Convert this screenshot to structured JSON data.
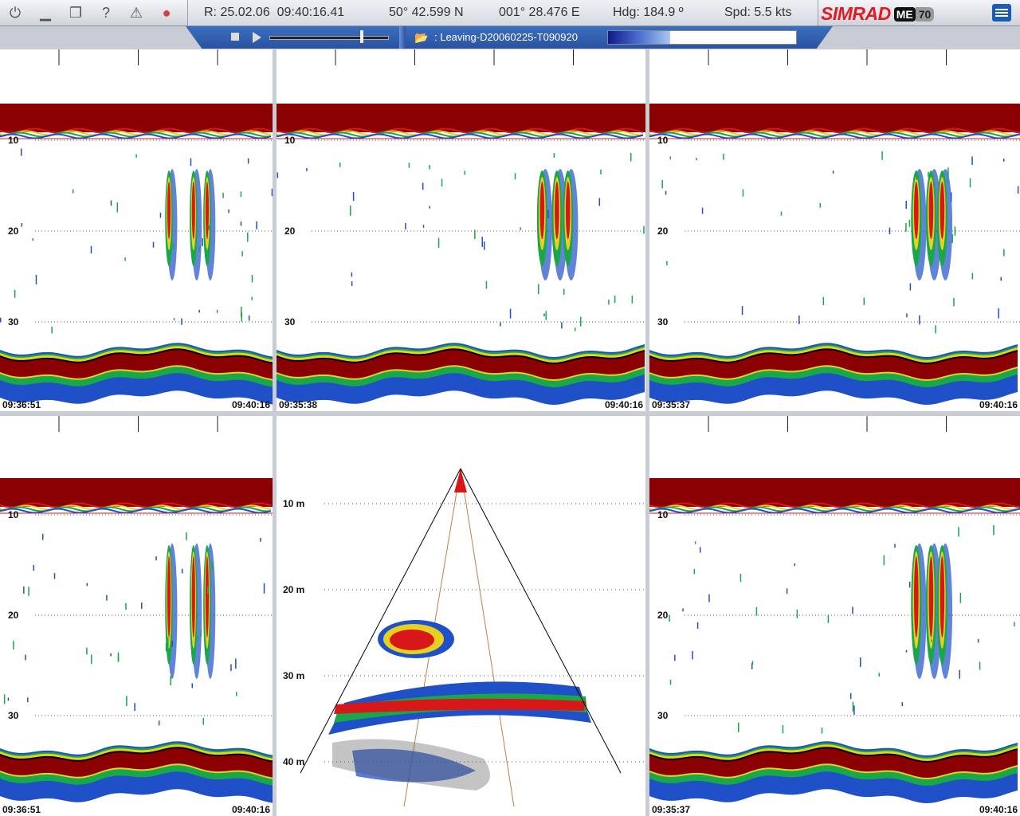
{
  "toolbar": {
    "icons": [
      "power-icon",
      "minimize-icon",
      "restore-icon",
      "help-icon",
      "warning-icon",
      "record-icon"
    ]
  },
  "status": {
    "date_time": "R: 25.02.06  09:40:16.41",
    "latitude": "50° 42.599 N",
    "longitude": "001° 28.476 E",
    "heading": "Hdg: 184.9 º",
    "speed": "Spd: 5.5 kts"
  },
  "brand": {
    "logo_text": "SIMRAD",
    "model_me": "ME",
    "model_num": "70"
  },
  "replay": {
    "file_label": ": Leaving-D20060225-T090920",
    "slider_position": 0.77,
    "progress_fraction": 0.33
  },
  "echograms": [
    {
      "id": "top-left",
      "depth_labels": [
        "10",
        "20",
        "30"
      ],
      "time_start": "09:36:51",
      "time_end": "09:40:16"
    },
    {
      "id": "top-middle",
      "depth_labels": [
        "10",
        "20",
        "30"
      ],
      "time_start": "09:35:38",
      "time_end": "09:40:16"
    },
    {
      "id": "top-right",
      "depth_labels": [
        "10",
        "20",
        "30"
      ],
      "time_start": "09:35:37",
      "time_end": "09:40:16"
    },
    {
      "id": "bottom-left",
      "depth_labels": [
        "10",
        "20",
        "30"
      ],
      "time_start": "09:36:51",
      "time_end": "09:40:16"
    },
    {
      "id": "bottom-right",
      "depth_labels": [
        "10",
        "20",
        "30"
      ],
      "time_start": "09:35:37",
      "time_end": "09:40:16"
    }
  ],
  "sector": {
    "depth_labels": [
      "10 m",
      "20 m",
      "30 m",
      "40 m"
    ]
  },
  "colors": {
    "accent_red": "#e01b24",
    "echo_strong": "#8b0000",
    "echo_red": "#d81818",
    "echo_yellow": "#e8d020",
    "echo_green": "#18a848",
    "echo_blue": "#2050c8",
    "bottom_line": "#000000"
  }
}
